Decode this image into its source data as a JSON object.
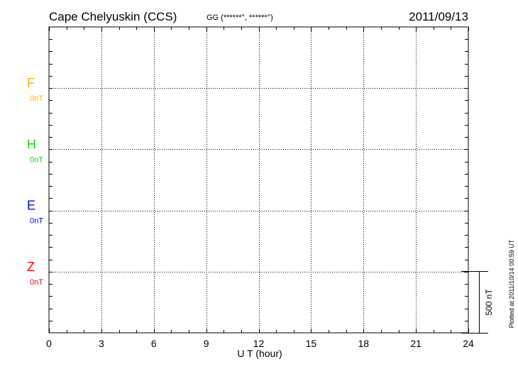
{
  "chart_data": {
    "type": "line",
    "title": "Cape Chelyuskin (CCS)",
    "subtitle": "GG (******°, ******°)",
    "date": "2011/09/13",
    "xlabel": "U T (hour)",
    "xlim": [
      0,
      24
    ],
    "xticks": [
      "0",
      "3",
      "6",
      "9",
      "12",
      "15",
      "18",
      "21",
      "24"
    ],
    "grid": true,
    "series": [
      {
        "name": "F",
        "baseline": "0nT",
        "color": "#ffb000",
        "values": []
      },
      {
        "name": "H",
        "baseline": "0nT",
        "color": "#00e000",
        "values": []
      },
      {
        "name": "E",
        "baseline": "0nT",
        "color": "#0000ff",
        "values": []
      },
      {
        "name": "Z",
        "baseline": "0nT",
        "color": "#ff0000",
        "values": []
      }
    ],
    "scale_bar": "500 nT",
    "footnote": "Plotted at 2011/10/14 00:59 UT"
  }
}
